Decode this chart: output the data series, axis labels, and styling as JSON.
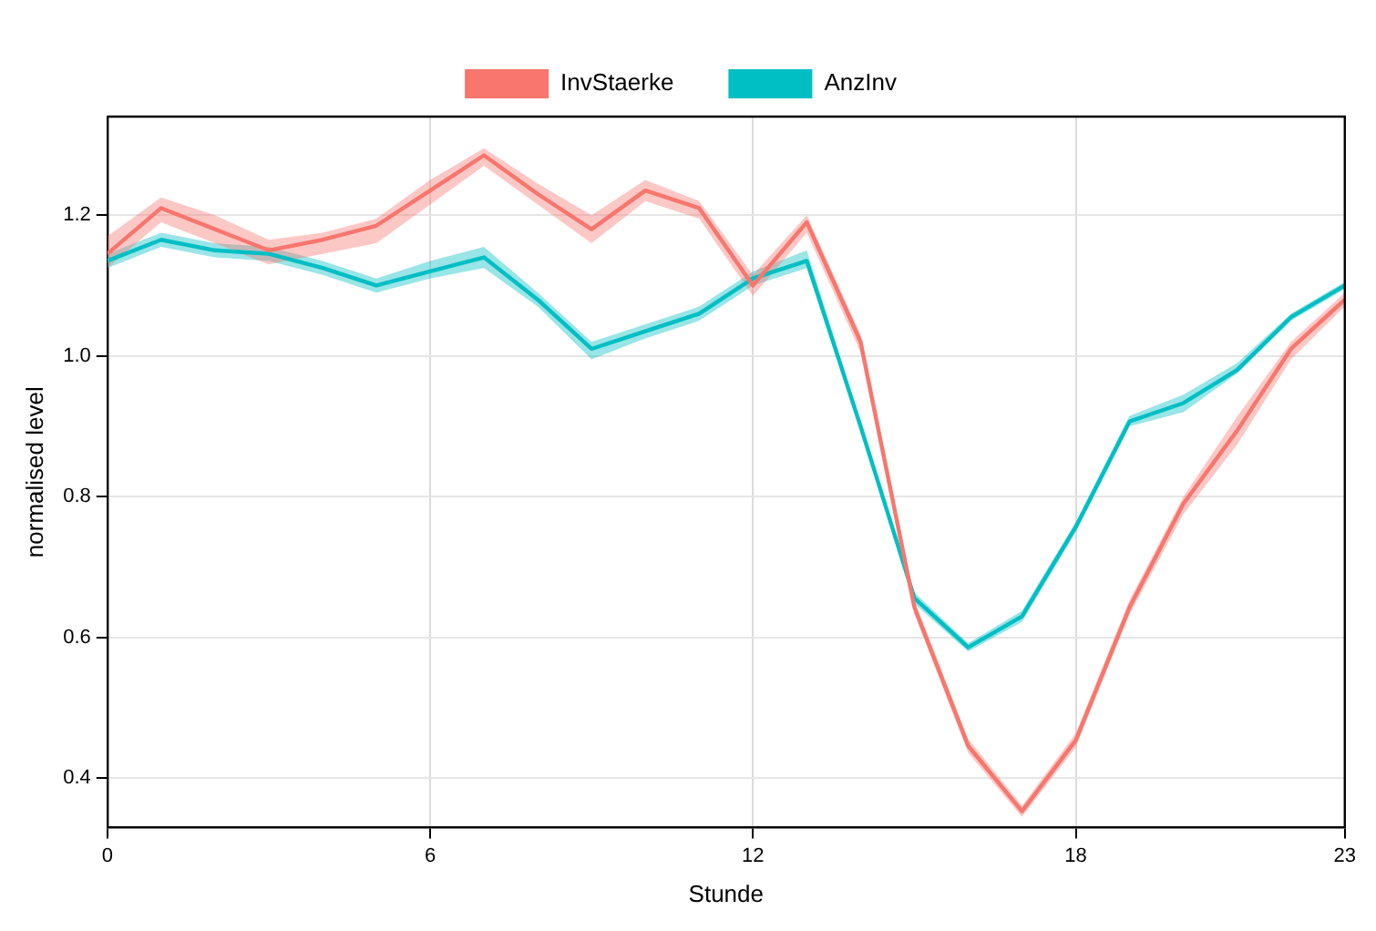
{
  "chart_data": {
    "type": "line",
    "xlabel": "Stunde",
    "ylabel": "normalised level",
    "x": [
      0,
      1,
      2,
      3,
      4,
      5,
      6,
      7,
      8,
      9,
      10,
      11,
      12,
      13,
      14,
      15,
      16,
      17,
      18,
      19,
      20,
      21,
      22,
      23
    ],
    "series": [
      {
        "name": "InvStaerke",
        "color": "#f8766d",
        "values": [
          1.145,
          1.21,
          1.18,
          1.15,
          1.165,
          1.185,
          1.235,
          1.285,
          1.23,
          1.18,
          1.235,
          1.21,
          1.1,
          1.19,
          1.02,
          0.643,
          0.446,
          0.353,
          0.454,
          0.643,
          0.79,
          0.894,
          1.01,
          1.08
        ],
        "lower": [
          1.125,
          1.19,
          1.16,
          1.13,
          1.145,
          1.16,
          1.215,
          1.27,
          1.215,
          1.16,
          1.22,
          1.195,
          1.085,
          1.175,
          1.005,
          0.633,
          0.436,
          0.345,
          0.444,
          0.633,
          0.775,
          0.874,
          0.995,
          1.07
        ],
        "upper": [
          1.17,
          1.225,
          1.2,
          1.165,
          1.175,
          1.195,
          1.25,
          1.295,
          1.245,
          1.2,
          1.25,
          1.22,
          1.115,
          1.2,
          1.03,
          0.653,
          0.456,
          0.361,
          0.464,
          0.653,
          0.8,
          0.914,
          1.02,
          1.09
        ]
      },
      {
        "name": "AnzInv",
        "color": "#00bfc4",
        "values": [
          1.135,
          1.165,
          1.15,
          1.145,
          1.125,
          1.1,
          1.12,
          1.14,
          1.08,
          1.01,
          1.035,
          1.06,
          1.11,
          1.135,
          0.9,
          0.656,
          0.586,
          0.63,
          0.757,
          0.907,
          0.933,
          0.98,
          1.055,
          1.1
        ],
        "lower": [
          1.125,
          1.155,
          1.14,
          1.135,
          1.115,
          1.09,
          1.11,
          1.125,
          1.07,
          0.995,
          1.025,
          1.05,
          1.1,
          1.125,
          0.895,
          0.648,
          0.58,
          0.622,
          0.75,
          0.9,
          0.92,
          0.975,
          1.05,
          1.095
        ],
        "upper": [
          1.145,
          1.175,
          1.16,
          1.155,
          1.135,
          1.11,
          1.135,
          1.155,
          1.09,
          1.02,
          1.045,
          1.07,
          1.12,
          1.15,
          0.905,
          0.664,
          0.592,
          0.638,
          0.764,
          0.915,
          0.945,
          0.99,
          1.06,
          1.105
        ]
      }
    ],
    "xlim": [
      0,
      23
    ],
    "xticks": [
      0,
      6,
      12,
      18,
      23
    ],
    "ylim": [
      0.33,
      1.34
    ],
    "yticks": [
      0.4,
      0.6,
      0.8,
      {
        "value": 1,
        "label": "1.0"
      },
      1.2
    ],
    "grid": true,
    "legend": "top",
    "marker": "none",
    "line_style": "solid"
  }
}
